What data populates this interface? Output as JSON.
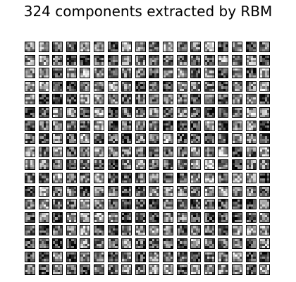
{
  "figure": {
    "title": "324 components extracted by RBM",
    "grid_rows": 18,
    "grid_cols": 18,
    "component_count": 324,
    "colormap": "gray",
    "background": "#ffffff",
    "tile_border_color": "#000000"
  }
}
